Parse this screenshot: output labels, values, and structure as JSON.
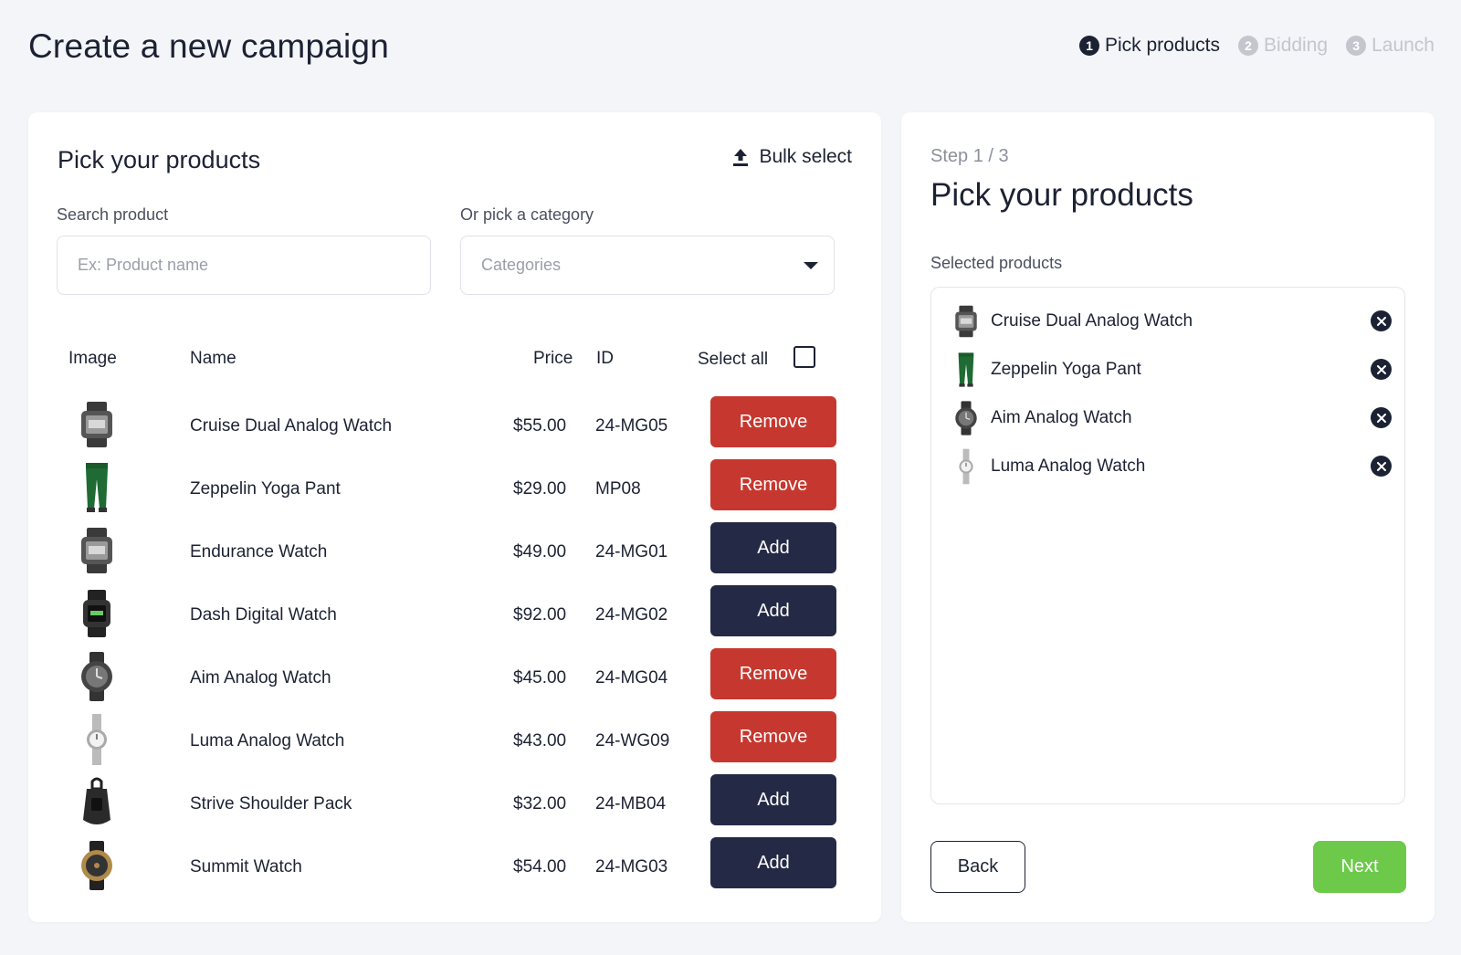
{
  "header": {
    "title": "Create a new campaign",
    "steps": [
      {
        "num": "1",
        "label": "Pick products",
        "active": true
      },
      {
        "num": "2",
        "label": "Bidding",
        "active": false
      },
      {
        "num": "3",
        "label": "Launch",
        "active": false
      }
    ]
  },
  "left": {
    "title": "Pick your products",
    "bulk_select": "Bulk select",
    "search": {
      "label": "Search product",
      "placeholder": "Ex: Product name"
    },
    "category": {
      "label": "Or pick a category",
      "placeholder": "Categories"
    },
    "columns": {
      "image": "Image",
      "name": "Name",
      "price": "Price",
      "id": "ID",
      "select_all": "Select all"
    },
    "products": [
      {
        "name": "Cruise Dual Analog Watch",
        "price": "$55.00",
        "id": "24-MG05",
        "action": "Remove",
        "icon": "watch-square"
      },
      {
        "name": "Zeppelin Yoga Pant",
        "price": "$29.00",
        "id": "MP08",
        "action": "Remove",
        "icon": "pant"
      },
      {
        "name": "Endurance Watch",
        "price": "$49.00",
        "id": "24-MG01",
        "action": "Add",
        "icon": "watch-square"
      },
      {
        "name": "Dash Digital Watch",
        "price": "$92.00",
        "id": "24-MG02",
        "action": "Add",
        "icon": "watch-digital"
      },
      {
        "name": "Aim Analog Watch",
        "price": "$45.00",
        "id": "24-MG04",
        "action": "Remove",
        "icon": "watch-round"
      },
      {
        "name": "Luma Analog Watch",
        "price": "$43.00",
        "id": "24-WG09",
        "action": "Remove",
        "icon": "watch-silver"
      },
      {
        "name": "Strive Shoulder Pack",
        "price": "$32.00",
        "id": "24-MB04",
        "action": "Add",
        "icon": "bag"
      },
      {
        "name": "Summit Watch",
        "price": "$54.00",
        "id": "24-MG03",
        "action": "Add",
        "icon": "watch-gold"
      }
    ]
  },
  "right": {
    "step_label": "Step 1 / 3",
    "title": "Pick your products",
    "selected_label": "Selected products",
    "selected": [
      {
        "name": "Cruise Dual Analog Watch",
        "icon": "watch-square"
      },
      {
        "name": "Zeppelin Yoga Pant",
        "icon": "pant"
      },
      {
        "name": "Aim Analog Watch",
        "icon": "watch-round"
      },
      {
        "name": "Luma Analog Watch",
        "icon": "watch-silver"
      }
    ],
    "back": "Back",
    "next": "Next"
  },
  "colors": {
    "remove": "#c6382f",
    "add": "#242a45",
    "next": "#6cc94a",
    "text": "#1c2233"
  }
}
